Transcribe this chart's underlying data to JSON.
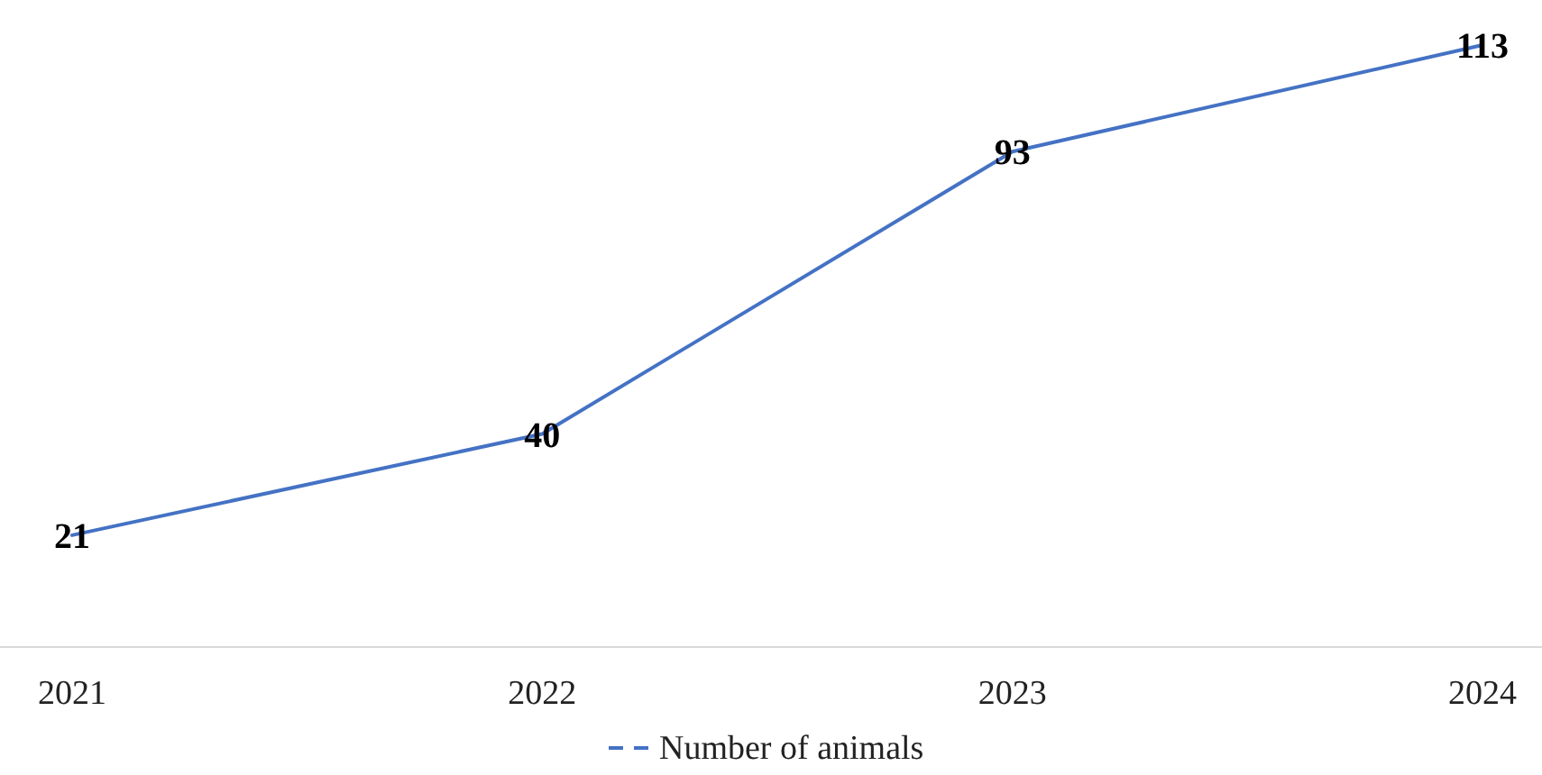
{
  "chart_data": {
    "type": "line",
    "categories": [
      "2021",
      "2022",
      "2023",
      "2024"
    ],
    "series": [
      {
        "name": "Number of animals",
        "color": "#4472c4",
        "values": [
          21,
          40,
          93,
          113
        ]
      }
    ],
    "data_labels": true,
    "legend": "bottom",
    "grid": false,
    "marker": "none",
    "line_style": "solid"
  }
}
